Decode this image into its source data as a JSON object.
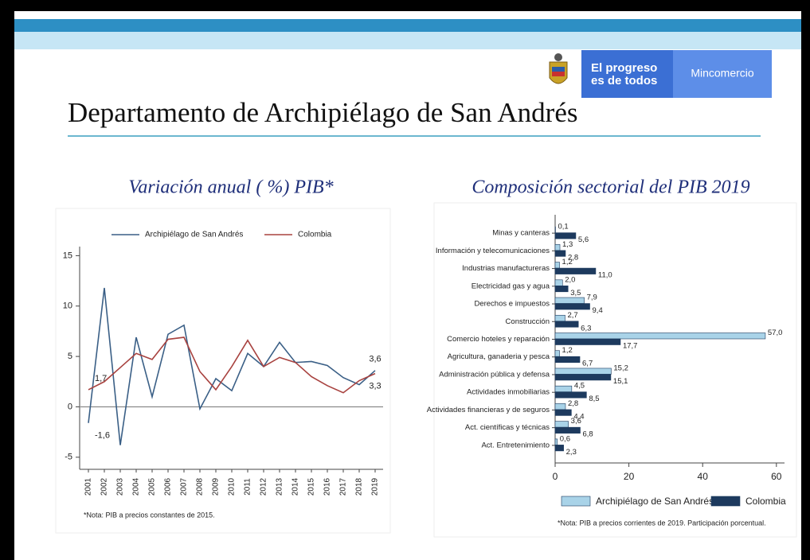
{
  "header": {
    "brand_lines": [
      "El progreso",
      "es de todos"
    ],
    "ministry": "Mincomercio",
    "title": "Departamento de Archipiélago de San Andrés"
  },
  "chart_data": [
    {
      "type": "line",
      "title": "Variación anual ( %) PIB*",
      "note": "*Nota: PIB a precios constantes de 2015.",
      "categories": [
        "2001",
        "2002",
        "2003",
        "2004",
        "2005",
        "2006",
        "2007",
        "2008",
        "2009",
        "2010",
        "2011",
        "2012",
        "2013",
        "2014",
        "2015",
        "2016",
        "2017",
        "2018",
        "2019"
      ],
      "series": [
        {
          "name": "Archipiélago de San Andrés",
          "color": "#3a5f86",
          "values": [
            -1.6,
            11.8,
            -3.8,
            6.9,
            1.0,
            7.2,
            8.1,
            -0.2,
            2.8,
            1.6,
            5.3,
            4.0,
            6.4,
            4.4,
            4.5,
            4.1,
            2.9,
            2.2,
            3.6
          ],
          "value_labels": [
            "-1,6",
            null,
            null,
            null,
            null,
            null,
            null,
            null,
            null,
            null,
            null,
            null,
            null,
            null,
            null,
            null,
            null,
            null,
            "3,6"
          ]
        },
        {
          "name": "Colombia",
          "color": "#a8423f",
          "values": [
            1.7,
            2.5,
            3.9,
            5.3,
            4.7,
            6.7,
            6.9,
            3.5,
            1.7,
            4.0,
            6.6,
            4.0,
            4.9,
            4.4,
            3.0,
            2.1,
            1.4,
            2.6,
            3.3
          ],
          "value_labels": [
            "1,7",
            null,
            null,
            null,
            null,
            null,
            null,
            null,
            null,
            null,
            null,
            null,
            null,
            null,
            null,
            null,
            null,
            null,
            "3,3"
          ]
        }
      ],
      "ylim": [
        -6.2,
        15.9
      ],
      "yticks": [
        -5,
        0,
        5,
        10,
        15
      ],
      "grid": false,
      "legend": "top"
    },
    {
      "type": "bar",
      "orientation": "horizontal",
      "title": "Composición sectorial del PIB 2019",
      "note": "*Nota: PIB a precios corrientes de 2019. Participación porcentual.",
      "categories": [
        "Minas y canteras",
        "Información y telecomunicaciones",
        "Industrias manufactureras",
        "Electricidad gas y agua",
        "Derechos e impuestos",
        "Construcción",
        "Comercio hoteles y reparación",
        "Agricultura, ganaderia y pesca",
        "Administración pública y defensa",
        "Actividades inmobiliarias",
        "Actividades financieras y de seguros",
        "Act. científicas y técnicas",
        "Act. Entretenimiento"
      ],
      "series": [
        {
          "name": "Archipiélago de San Andrés",
          "color": "#a9d3e8",
          "values": [
            0.1,
            1.3,
            1.2,
            2.0,
            7.9,
            2.7,
            57.0,
            1.2,
            15.2,
            4.5,
            2.8,
            3.6,
            0.6
          ],
          "value_labels": [
            "0,1",
            "1,3",
            "1,2",
            "2,0",
            "7,9",
            "2,7",
            "57,0",
            "1,2",
            "15,2",
            "4,5",
            "2,8",
            "3,6",
            "0,6"
          ]
        },
        {
          "name": "Colombia",
          "color": "#1d3a5e",
          "values": [
            5.6,
            2.8,
            11.0,
            3.5,
            9.4,
            6.3,
            17.7,
            6.7,
            15.1,
            8.5,
            4.4,
            6.8,
            2.3
          ],
          "value_labels": [
            "5,6",
            "2,8",
            "11,0",
            "3,5",
            "9,4",
            "6,3",
            "17,7",
            "6,7",
            "15,1",
            "8,5",
            "4,4",
            "6,8",
            "2,3"
          ]
        }
      ],
      "xlim": [
        0,
        62.2
      ],
      "xticks": [
        0,
        20,
        40,
        60
      ],
      "grid": false,
      "legend": "bottom"
    }
  ]
}
